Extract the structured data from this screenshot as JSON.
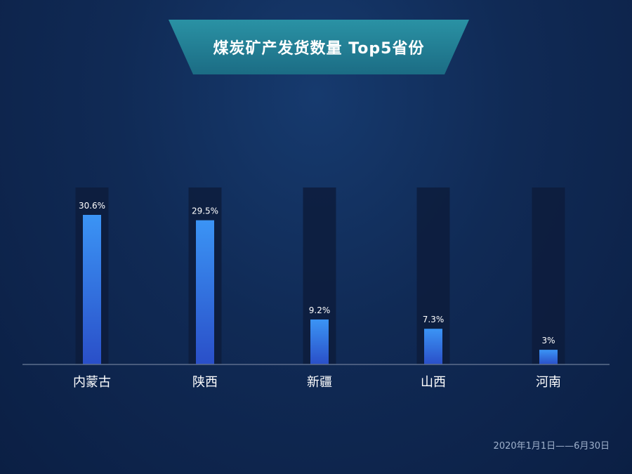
{
  "chart_data": {
    "type": "bar",
    "title": "煤炭矿产发货数量 Top5省份",
    "categories": [
      "内蒙古",
      "陕西",
      "新疆",
      "山西",
      "河南"
    ],
    "values": [
      30.6,
      29.5,
      9.2,
      7.3,
      3
    ],
    "value_labels": [
      "30.6%",
      "29.5%",
      "9.2%",
      "7.3%",
      "3%"
    ],
    "ylim": [
      0,
      35
    ],
    "grid": false,
    "legend": "none",
    "colors": {
      "bar_top": "#3b94f5",
      "bar_bottom": "#2a4fc8",
      "track": "#0d1c3c",
      "axis": "#5d6e8c"
    }
  },
  "footer": {
    "date_range": "2020年1月1日——6月30日"
  }
}
